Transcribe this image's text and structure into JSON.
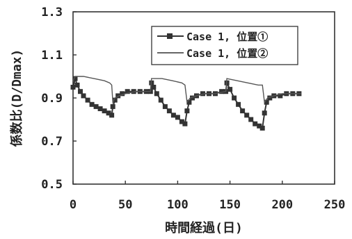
{
  "chart_data": {
    "type": "line",
    "title": "",
    "xlabel": "時間経過(日)",
    "ylabel": "係数比(D/Dmax)",
    "xlim": [
      0,
      250
    ],
    "ylim": [
      0.5,
      1.3
    ],
    "x_ticks": [
      0,
      50,
      100,
      150,
      200,
      250
    ],
    "y_ticks": [
      "0.5",
      "0.7",
      "0.9",
      "1.1",
      "1.3"
    ],
    "grid": false,
    "legend_position": "top-right",
    "series": [
      {
        "name": "Case 1, 位置①",
        "marker": "square",
        "color": "#333333",
        "points": [
          [
            0,
            0.95
          ],
          [
            2,
            0.99
          ],
          [
            4,
            0.96
          ],
          [
            7,
            0.93
          ],
          [
            10,
            0.91
          ],
          [
            14,
            0.89
          ],
          [
            18,
            0.87
          ],
          [
            22,
            0.86
          ],
          [
            26,
            0.85
          ],
          [
            30,
            0.84
          ],
          [
            34,
            0.83
          ],
          [
            37,
            0.82
          ],
          [
            38,
            0.86
          ],
          [
            40,
            0.89
          ],
          [
            43,
            0.91
          ],
          [
            47,
            0.92
          ],
          [
            52,
            0.93
          ],
          [
            58,
            0.93
          ],
          [
            64,
            0.93
          ],
          [
            70,
            0.93
          ],
          [
            74,
            0.93
          ],
          [
            75,
            0.97
          ],
          [
            77,
            0.95
          ],
          [
            80,
            0.92
          ],
          [
            84,
            0.89
          ],
          [
            88,
            0.86
          ],
          [
            92,
            0.84
          ],
          [
            96,
            0.82
          ],
          [
            100,
            0.81
          ],
          [
            104,
            0.79
          ],
          [
            107,
            0.78
          ],
          [
            109,
            0.84
          ],
          [
            111,
            0.88
          ],
          [
            114,
            0.9
          ],
          [
            118,
            0.91
          ],
          [
            124,
            0.92
          ],
          [
            130,
            0.92
          ],
          [
            136,
            0.92
          ],
          [
            142,
            0.93
          ],
          [
            146,
            0.93
          ],
          [
            147,
            0.97
          ],
          [
            150,
            0.94
          ],
          [
            154,
            0.9
          ],
          [
            158,
            0.87
          ],
          [
            162,
            0.84
          ],
          [
            166,
            0.82
          ],
          [
            170,
            0.8
          ],
          [
            174,
            0.78
          ],
          [
            178,
            0.77
          ],
          [
            181,
            0.76
          ],
          [
            183,
            0.83
          ],
          [
            185,
            0.88
          ],
          [
            188,
            0.9
          ],
          [
            192,
            0.91
          ],
          [
            198,
            0.91
          ],
          [
            204,
            0.92
          ],
          [
            210,
            0.92
          ],
          [
            216,
            0.92
          ]
        ]
      },
      {
        "name": "Case 1, 位置②",
        "marker": "none",
        "color": "#555555",
        "points": [
          [
            0,
            0.98
          ],
          [
            2,
            1.0
          ],
          [
            10,
            1.0
          ],
          [
            20,
            0.99
          ],
          [
            30,
            0.98
          ],
          [
            35,
            0.97
          ],
          [
            37,
            0.96
          ],
          [
            38,
            0.88
          ],
          [
            40,
            0.9
          ],
          [
            44,
            0.91
          ],
          [
            50,
            0.92
          ],
          [
            60,
            0.93
          ],
          [
            70,
            0.93
          ],
          [
            74,
            0.93
          ],
          [
            75,
            0.99
          ],
          [
            85,
            0.99
          ],
          [
            95,
            0.98
          ],
          [
            104,
            0.97
          ],
          [
            107,
            0.96
          ],
          [
            109,
            0.88
          ],
          [
            112,
            0.9
          ],
          [
            118,
            0.91
          ],
          [
            126,
            0.92
          ],
          [
            136,
            0.92
          ],
          [
            146,
            0.93
          ],
          [
            147,
            0.99
          ],
          [
            157,
            0.98
          ],
          [
            167,
            0.97
          ],
          [
            177,
            0.96
          ],
          [
            181,
            0.96
          ],
          [
            183,
            0.88
          ],
          [
            186,
            0.9
          ],
          [
            192,
            0.91
          ],
          [
            200,
            0.92
          ],
          [
            210,
            0.92
          ],
          [
            218,
            0.92
          ]
        ]
      }
    ]
  },
  "legend": {
    "items": [
      "Case 1, 位置①",
      "Case 1, 位置②"
    ]
  }
}
